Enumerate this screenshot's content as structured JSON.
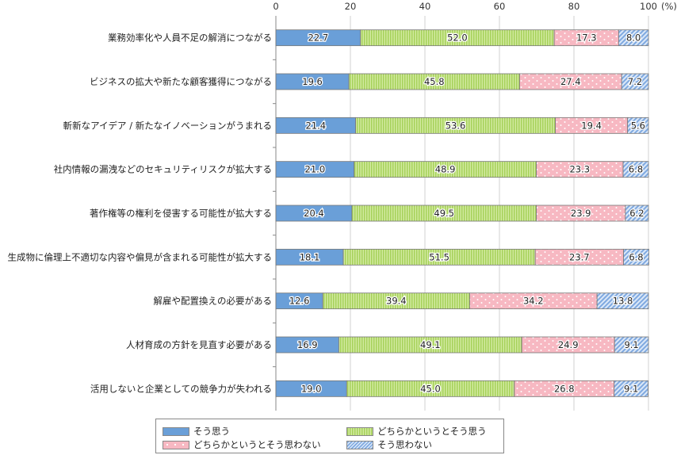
{
  "chart_data": {
    "type": "bar",
    "orientation": "horizontal",
    "stacked": true,
    "unit": "(%)",
    "xlim": [
      0,
      100
    ],
    "x_ticks": [
      0,
      20,
      40,
      60,
      80,
      100
    ],
    "x_tick_labels": [
      "0",
      "20",
      "40",
      "60",
      "80",
      "100"
    ],
    "grid": true,
    "legend_position": "bottom",
    "categories": [
      "業務効率化や人員不足の解消につながる",
      "ビジネスの拡大や新たな顧客獲得につながる",
      "斬新なアイデア / 新たなイノベーションがうまれる",
      "社内情報の漏洩などのセキュリティリスクが拡大する",
      "著作権等の権利を侵害する可能性が拡大する",
      "生成物に倫理上不適切な内容や偏見が含まれる可能性が拡大する",
      "解雇や配置換えの必要がある",
      "人材育成の方針を見直す必要がある",
      "活用しないと企業としての競争力が失われる"
    ],
    "series": [
      {
        "name": "そう思う",
        "color": "#6a9fd8",
        "pattern": "solid",
        "values": [
          22.7,
          19.6,
          21.4,
          21.0,
          20.4,
          18.1,
          12.6,
          16.9,
          19.0
        ]
      },
      {
        "name": "どちらかというとそう思う",
        "color": "#b5dc6e",
        "pattern": "vertical-stripes",
        "values": [
          52.0,
          45.8,
          53.6,
          48.9,
          49.5,
          51.5,
          39.4,
          49.1,
          45.0
        ]
      },
      {
        "name": "どちらかというとそう思わない",
        "color": "#f7b8c2",
        "pattern": "dots",
        "values": [
          17.3,
          27.4,
          19.4,
          23.3,
          23.9,
          23.7,
          34.2,
          24.9,
          26.8
        ]
      },
      {
        "name": "そう思わない",
        "color": "#a9c6ec",
        "pattern": "diagonal-stripes",
        "values": [
          8.0,
          7.2,
          5.6,
          6.8,
          6.2,
          6.8,
          13.8,
          9.1,
          9.1
        ]
      }
    ]
  }
}
